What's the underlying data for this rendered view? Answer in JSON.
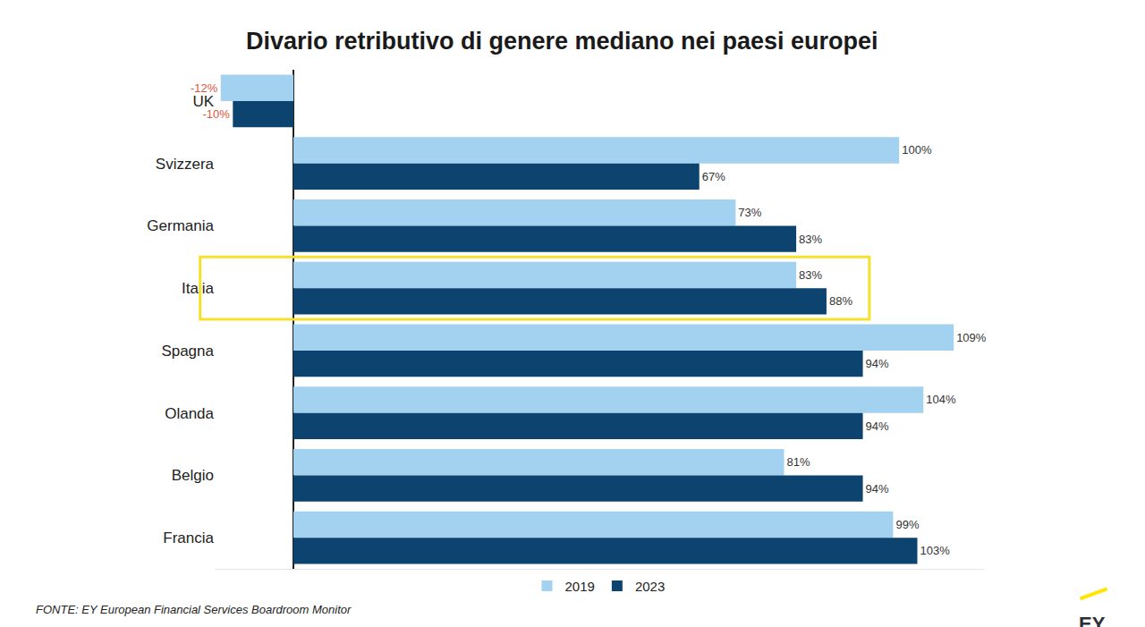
{
  "chart_data": {
    "type": "bar",
    "title": "Divario retributivo di genere mediano nei paesi europei",
    "orientation": "horizontal",
    "categories": [
      "UK",
      "Svizzera",
      "Germania",
      "Italia",
      "Spagna",
      "Olanda",
      "Belgio",
      "Francia"
    ],
    "series": [
      {
        "name": "2019",
        "color": "#a3d2f0",
        "values": [
          -12,
          100,
          73,
          83,
          109,
          104,
          81,
          99
        ],
        "value_labels": [
          "-12%",
          "100%",
          "73%",
          "83%",
          "109%",
          "104%",
          "81%",
          "99%"
        ]
      },
      {
        "name": "2023",
        "color": "#0c446f",
        "values": [
          -10,
          67,
          83,
          88,
          94,
          94,
          94,
          103
        ],
        "value_labels": [
          "-10%",
          "67%",
          "83%",
          "88%",
          "94%",
          "94%",
          "94%",
          "103%"
        ]
      }
    ],
    "xlim": [
      -13,
      114
    ],
    "xticks": [
      0
    ],
    "data_labels": true,
    "tick_labels": "y",
    "legend": "bottom",
    "annotations": [
      "FONTE: EY European Financial Services Boardroom Monitor",
      "EY"
    ]
  }
}
